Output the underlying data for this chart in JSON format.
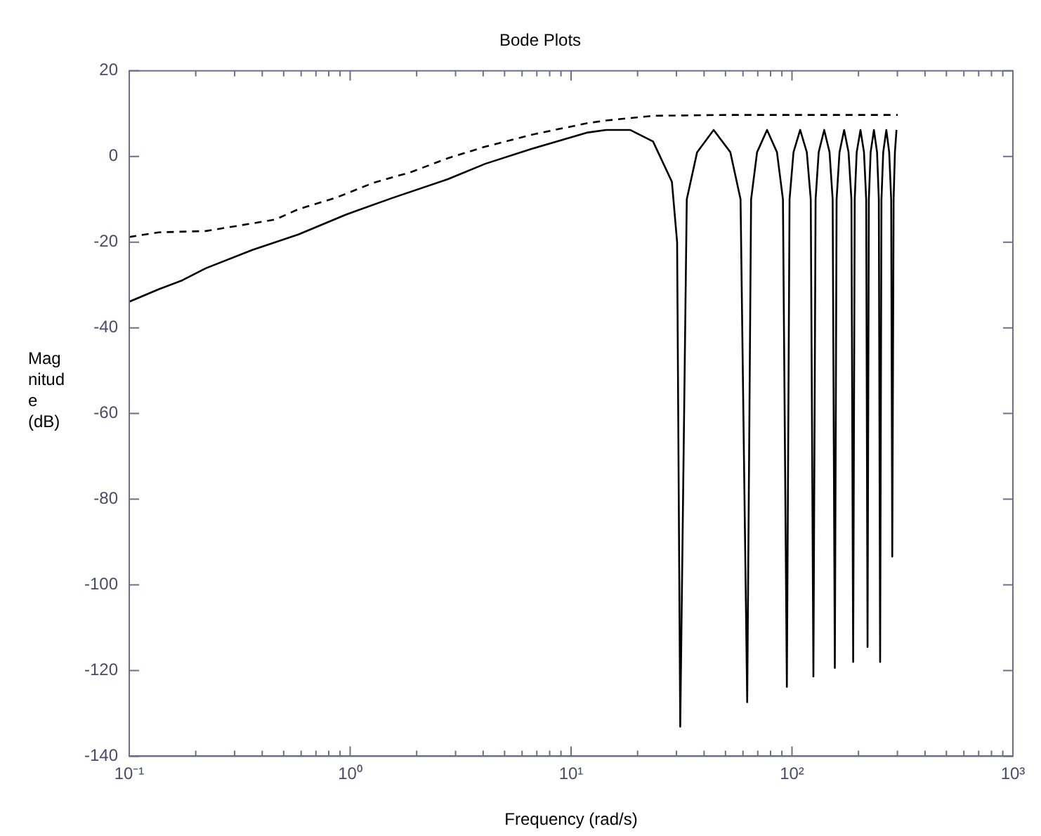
{
  "chart_data": {
    "type": "line",
    "title": "Bode Plots",
    "xlabel": "Frequency (rad/s)",
    "ylabel": "Magnitude (dB)",
    "log": "x",
    "grid": false,
    "legend": false,
    "marker": "none",
    "xlim": [
      0.1,
      1000
    ],
    "ylim": [
      -140,
      20
    ],
    "xticks": [
      {
        "value": 0.1,
        "label": "10⁻¹"
      },
      {
        "value": 0.2,
        "label": null
      },
      {
        "value": 0.3,
        "label": null
      },
      {
        "value": 0.4,
        "label": null
      },
      {
        "value": 0.5,
        "label": null
      },
      {
        "value": 0.6,
        "label": null
      },
      {
        "value": 0.7,
        "label": null
      },
      {
        "value": 0.8,
        "label": null
      },
      {
        "value": 0.9,
        "label": null
      },
      {
        "value": 1,
        "label": "10⁰"
      },
      {
        "value": 2,
        "label": null
      },
      {
        "value": 3,
        "label": null
      },
      {
        "value": 4,
        "label": null
      },
      {
        "value": 5,
        "label": null
      },
      {
        "value": 6,
        "label": null
      },
      {
        "value": 7,
        "label": null
      },
      {
        "value": 8,
        "label": null
      },
      {
        "value": 9,
        "label": null
      },
      {
        "value": 10,
        "label": "10¹"
      },
      {
        "value": 20,
        "label": null
      },
      {
        "value": 30,
        "label": null
      },
      {
        "value": 40,
        "label": null
      },
      {
        "value": 50,
        "label": null
      },
      {
        "value": 60,
        "label": null
      },
      {
        "value": 70,
        "label": null
      },
      {
        "value": 80,
        "label": null
      },
      {
        "value": 90,
        "label": null
      },
      {
        "value": 100,
        "label": "10²"
      },
      {
        "value": 200,
        "label": null
      },
      {
        "value": 300,
        "label": null
      },
      {
        "value": 400,
        "label": null
      },
      {
        "value": 500,
        "label": null
      },
      {
        "value": 600,
        "label": null
      },
      {
        "value": 700,
        "label": null
      },
      {
        "value": 800,
        "label": null
      },
      {
        "value": 900,
        "label": null
      },
      {
        "value": 1000,
        "label": "10³"
      }
    ],
    "yticks": [
      -140,
      -120,
      -100,
      -80,
      -60,
      -40,
      -20,
      0,
      20
    ],
    "series": [
      {
        "color": "#000000",
        "line_style": "solid",
        "x": [
          0.1,
          0.136,
          0.174,
          0.222,
          0.361,
          0.583,
          0.953,
          1.55,
          2.77,
          4.09,
          6.65,
          11.9,
          14.4,
          18.5,
          23.5,
          28.6,
          30.2,
          31.2,
          33.4,
          37.2,
          44.2,
          52.6,
          58.5,
          62.7,
          65.3,
          69.5,
          77.1,
          85.5,
          91.0,
          94.8,
          97.5,
          101.6,
          108.9,
          116.7,
          121.6,
          125.0,
          127.9,
          132.1,
          139.9,
          147.9,
          152.8,
          156.3,
          159.2,
          164.1,
          172.2,
          180.3,
          185.8,
          189.2,
          192.3,
          196.3,
          204.2,
          211.8,
          216.7,
          219.8,
          222.8,
          227.0,
          234.9,
          242.7,
          247.2,
          250.6,
          254.1,
          258.8,
          267.3,
          275.4,
          281.2,
          284.4,
          288.4,
          292.4,
          297.2
        ],
        "values": [
          -33.9,
          -31.0,
          -28.9,
          -26.1,
          -21.8,
          -18.2,
          -13.6,
          -9.7,
          -5.3,
          -1.7,
          1.8,
          5.6,
          6.2,
          6.2,
          3.5,
          -5.9,
          -20,
          -133.1,
          -10,
          1,
          6.2,
          1,
          -10,
          -127.4,
          -10,
          1,
          6.2,
          1,
          -10,
          -123.8,
          -10,
          1,
          6.2,
          1,
          -10,
          -121.4,
          -10,
          1,
          6.2,
          1,
          -10,
          -119.4,
          -10,
          1,
          6.2,
          1,
          -10,
          -118,
          -10,
          1,
          6.2,
          1,
          -10,
          -114.5,
          -10,
          1,
          6.2,
          1,
          -10,
          -118,
          -10,
          1,
          6.2,
          1,
          -10,
          -93.4,
          -10,
          1,
          6.2
        ]
      },
      {
        "color": "#000000",
        "line_style": "dashed",
        "x": [
          0.1,
          0.136,
          0.222,
          0.344,
          0.46,
          0.583,
          0.865,
          1.28,
          1.87,
          2.77,
          4.09,
          6.65,
          11.9,
          14.4,
          23.5,
          50,
          301
        ],
        "values": [
          -18.8,
          -17.7,
          -17.4,
          -15.8,
          -14.7,
          -12.3,
          -9.6,
          -6.1,
          -3.7,
          -0.4,
          2.3,
          5.1,
          7.8,
          8.4,
          9.5,
          9.7,
          9.7
        ]
      }
    ]
  }
}
